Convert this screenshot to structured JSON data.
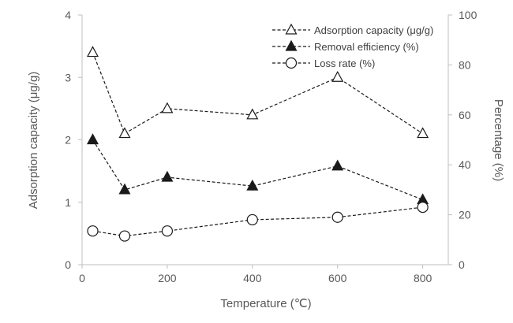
{
  "chart_data": {
    "type": "line",
    "title": "",
    "x": [
      25,
      100,
      200,
      400,
      600,
      800
    ],
    "xlabel": "Temperature (℃)",
    "xlim": [
      0,
      860
    ],
    "xticks": [
      "0",
      "200",
      "400",
      "600",
      "800"
    ],
    "xtick_values": [
      0,
      200,
      400,
      600,
      800
    ],
    "ylabel_left": "Adsorption capacity (μg/g)",
    "ylim_left": [
      0,
      4
    ],
    "yticks_left": [
      "0",
      "1",
      "2",
      "3",
      "4"
    ],
    "ytick_values_left": [
      0,
      1,
      2,
      3,
      4
    ],
    "ylabel_right": "Percentage (%)",
    "ylim_right": [
      0,
      100
    ],
    "yticks_right": [
      "0",
      "20",
      "40",
      "60",
      "80",
      "100"
    ],
    "ytick_values_right": [
      0,
      20,
      40,
      60,
      80,
      100
    ],
    "grid": false,
    "legend_position": "top-right",
    "series": [
      {
        "name": "Adsorption capacity (μg/g)",
        "axis": "left",
        "marker": "triangle-open",
        "values": [
          3.4,
          2.1,
          2.5,
          2.4,
          3.0,
          2.1
        ]
      },
      {
        "name": "Removal efficiency (%)",
        "axis": "right",
        "marker": "triangle-filled",
        "values": [
          50,
          30,
          35,
          31.5,
          39.5,
          26
        ]
      },
      {
        "name": "Loss rate (%)",
        "axis": "right",
        "marker": "circle-open",
        "values": [
          13.5,
          11.5,
          13.5,
          18,
          19,
          23
        ]
      }
    ]
  }
}
